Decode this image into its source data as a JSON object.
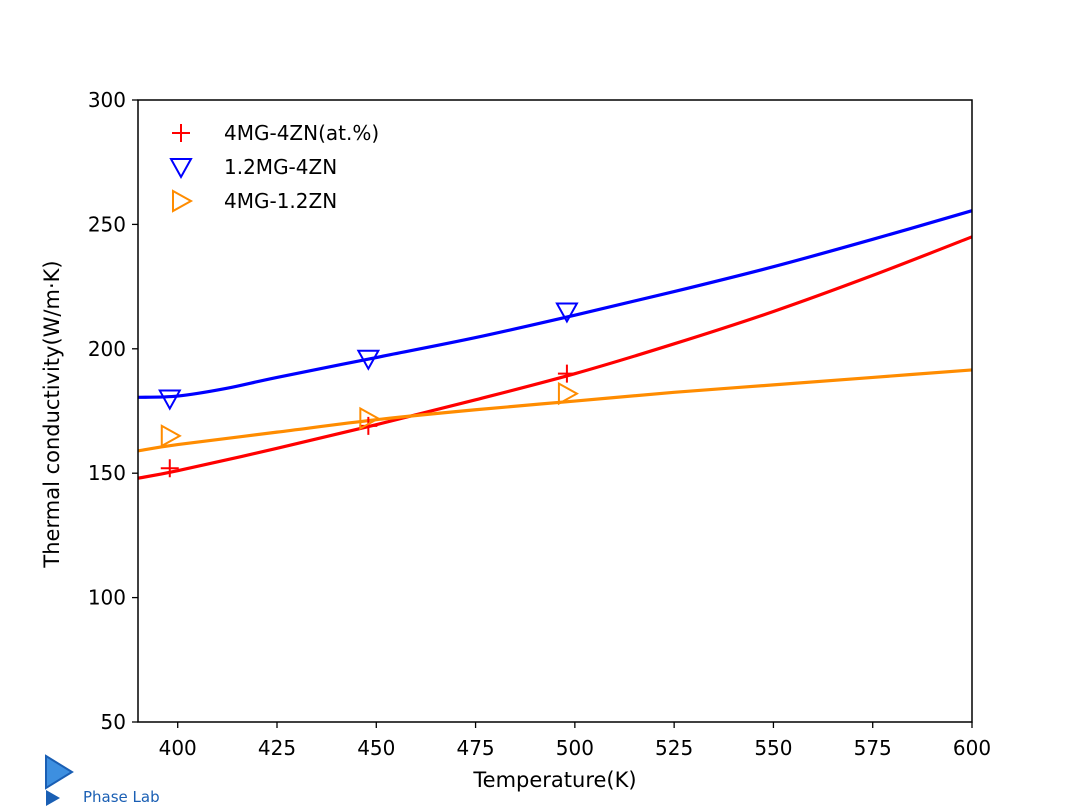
{
  "chart_data": {
    "type": "line",
    "xlabel": "Temperature(K)",
    "ylabel": "Thermal conductivity(W/m·K)",
    "xlim": [
      390,
      600
    ],
    "ylim": [
      50,
      300
    ],
    "xticks": [
      400,
      425,
      450,
      475,
      500,
      525,
      550,
      575,
      600
    ],
    "yticks": [
      50,
      100,
      150,
      200,
      250,
      300
    ],
    "grid": false,
    "legend_position": "top-left",
    "series": [
      {
        "name": "4MG-4ZN(at.%)",
        "color": "#ff0000",
        "marker": "plus",
        "points": [
          [
            398,
            152
          ],
          [
            448,
            169
          ],
          [
            498,
            190
          ]
        ],
        "curve": [
          [
            390,
            148
          ],
          [
            400,
            151
          ],
          [
            425,
            160
          ],
          [
            450,
            169.5
          ],
          [
            475,
            179.5
          ],
          [
            500,
            190
          ],
          [
            525,
            202
          ],
          [
            550,
            215
          ],
          [
            575,
            229.5
          ],
          [
            600,
            245
          ]
        ]
      },
      {
        "name": "1.2MG-4ZN",
        "color": "#0000ff",
        "marker": "triangle-down",
        "points": [
          [
            398,
            180
          ],
          [
            448,
            196
          ],
          [
            498,
            215
          ]
        ],
        "curve": [
          [
            390,
            180.5
          ],
          [
            400,
            181
          ],
          [
            412,
            184
          ],
          [
            425,
            188.5
          ],
          [
            450,
            196.5
          ],
          [
            475,
            204.5
          ],
          [
            500,
            213.5
          ],
          [
            525,
            223
          ],
          [
            550,
            233
          ],
          [
            575,
            244
          ],
          [
            600,
            255.5
          ]
        ]
      },
      {
        "name": "4MG-1.2ZN",
        "color": "#ff8c00",
        "marker": "triangle-right",
        "points": [
          [
            398,
            165
          ],
          [
            448,
            172
          ],
          [
            498,
            182
          ]
        ],
        "curve": [
          [
            390,
            159
          ],
          [
            400,
            161.5
          ],
          [
            425,
            166.5
          ],
          [
            450,
            171.5
          ],
          [
            475,
            175.5
          ],
          [
            500,
            179
          ],
          [
            525,
            182.5
          ],
          [
            550,
            185.5
          ],
          [
            575,
            188.5
          ],
          [
            600,
            191.5
          ]
        ]
      }
    ]
  },
  "logo": {
    "text": "Phase Lab"
  }
}
